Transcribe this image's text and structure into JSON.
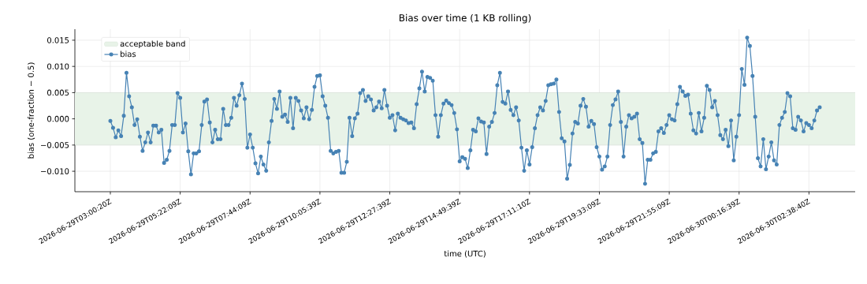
{
  "chart_data": {
    "type": "line",
    "title": "Bias over time (1 KB rolling)",
    "xlabel": "time (UTC)",
    "ylabel": "bias (one-fraction − 0.5)",
    "categories": [
      "2026-06-29T03:00:20Z",
      null,
      null,
      null,
      null,
      null,
      null,
      null,
      null,
      null,
      null,
      null,
      null,
      null,
      null,
      null,
      null,
      null,
      null,
      null,
      null,
      null,
      null,
      null,
      null,
      null,
      "2026-06-29T05:22:09Z",
      null,
      null,
      null,
      null,
      null,
      null,
      null,
      null,
      null,
      null,
      null,
      null,
      null,
      null,
      null,
      null,
      null,
      null,
      null,
      null,
      null,
      null,
      null,
      null,
      null,
      "2026-06-29T07:44:09Z",
      null,
      null,
      null,
      null,
      null,
      null,
      null,
      null,
      null,
      null,
      null,
      null,
      null,
      null,
      null,
      null,
      null,
      null,
      null,
      null,
      null,
      null,
      null,
      null,
      null,
      "2026-06-29T10:05:39Z",
      null,
      null,
      null,
      null,
      null,
      null,
      null,
      null,
      null,
      null,
      null,
      null,
      null,
      null,
      null,
      null,
      null,
      null,
      null,
      null,
      null,
      null,
      null,
      null,
      null,
      "2026-06-29T12:27:39Z",
      null,
      null,
      null,
      null,
      null,
      null,
      null,
      null,
      null,
      null,
      null,
      null,
      null,
      null,
      null,
      null,
      null,
      null,
      null,
      null,
      null,
      null,
      null,
      null,
      null,
      "2026-06-29T14:49:39Z",
      null,
      null,
      null,
      null,
      null,
      null,
      null,
      null,
      null,
      null,
      null,
      null,
      null,
      null,
      null,
      null,
      null,
      null,
      null,
      null,
      null,
      null,
      null,
      null,
      null,
      "2026-06-29T17:11:10Z",
      null,
      null,
      null,
      null,
      null,
      null,
      null,
      null,
      null,
      null,
      null,
      null,
      null,
      null,
      null,
      null,
      null,
      null,
      null,
      null,
      null,
      null,
      null,
      null,
      null,
      "2026-06-29T19:33:09Z",
      null,
      null,
      null,
      null,
      null,
      null,
      null,
      null,
      null,
      null,
      null,
      null,
      null,
      null,
      null,
      null,
      null,
      null,
      null,
      null,
      null,
      null,
      null,
      null,
      null,
      "2026-06-29T21:55:09Z",
      null,
      null,
      null,
      null,
      null,
      null,
      null,
      null,
      null,
      null,
      null,
      null,
      null,
      null,
      null,
      null,
      null,
      null,
      null,
      null,
      null,
      null,
      null,
      null,
      null,
      "2026-06-30T00:16:39Z",
      null,
      null,
      null,
      null,
      null,
      null,
      null,
      null,
      null,
      null,
      null,
      null,
      null,
      null,
      null,
      null,
      null,
      null,
      null,
      null,
      null,
      null,
      null,
      null,
      null,
      "2026-06-30T02:38:40Z",
      null,
      null,
      null,
      null
    ],
    "series": [
      {
        "name": "bias",
        "color": "#4682b4",
        "values": [
          -0.0004,
          -0.0017,
          -0.0035,
          -0.0022,
          -0.0033,
          0.0006,
          0.0088,
          0.0043,
          0.0022,
          -0.0012,
          -0.0001,
          -0.0034,
          -0.0061,
          -0.0045,
          -0.0026,
          -0.0045,
          -0.0013,
          -0.0013,
          -0.0026,
          -0.0021,
          -0.0084,
          -0.0078,
          -0.0061,
          -0.0012,
          -0.0012,
          0.0049,
          0.004,
          -0.0026,
          -0.0009,
          -0.0062,
          -0.0106,
          -0.0066,
          -0.0066,
          -0.0062,
          -0.0012,
          0.0033,
          0.0037,
          -0.0007,
          -0.0045,
          -0.0021,
          -0.0039,
          -0.0039,
          0.0019,
          -0.0012,
          -0.0012,
          0.0002,
          0.004,
          0.0025,
          0.0045,
          0.0067,
          0.0038,
          -0.0055,
          -0.003,
          -0.0055,
          -0.0085,
          -0.0104,
          -0.0072,
          -0.0087,
          -0.0099,
          -0.0045,
          -0.0004,
          0.0038,
          0.0019,
          0.0052,
          0.0004,
          0.0008,
          -0.0006,
          0.004,
          -0.0018,
          0.004,
          0.0034,
          0.0016,
          0.0001,
          0.0022,
          -0.0001,
          0.0017,
          0.0061,
          0.0082,
          0.0083,
          0.0043,
          0.0025,
          0.0002,
          -0.0061,
          -0.0066,
          -0.0063,
          -0.0061,
          -0.0103,
          -0.0103,
          -0.0082,
          0.0002,
          -0.0033,
          0.0001,
          0.001,
          0.0049,
          0.0055,
          0.0034,
          0.0043,
          0.0037,
          0.0016,
          0.0022,
          0.0033,
          0.002,
          0.0055,
          0.0025,
          0.0002,
          0.0007,
          -0.0022,
          0.001,
          0.0002,
          -0.0001,
          -0.0003,
          -0.0008,
          -0.0007,
          -0.0018,
          0.0028,
          0.0058,
          0.009,
          0.0052,
          0.008,
          0.0078,
          0.0073,
          0.0007,
          -0.0034,
          0.0007,
          0.0029,
          0.0035,
          0.003,
          0.0026,
          0.0011,
          -0.002,
          -0.0081,
          -0.0073,
          -0.0076,
          -0.0094,
          -0.006,
          -0.0021,
          -0.0024,
          0.0001,
          -0.0005,
          -0.0007,
          -0.0067,
          -0.0015,
          -0.0006,
          0.0011,
          0.0064,
          0.0088,
          0.0032,
          0.0029,
          0.0052,
          0.0017,
          0.0007,
          0.0022,
          -0.0003,
          -0.0055,
          -0.0099,
          -0.006,
          -0.0087,
          -0.0054,
          -0.0018,
          0.0007,
          0.0022,
          0.0016,
          0.0034,
          0.0064,
          0.0066,
          0.0067,
          0.0075,
          0.0013,
          -0.0037,
          -0.0043,
          -0.0114,
          -0.0088,
          -0.0028,
          -0.0006,
          -0.0009,
          0.0025,
          0.0038,
          0.0023,
          -0.0015,
          -0.0004,
          -0.001,
          -0.0054,
          -0.0072,
          -0.0097,
          -0.0091,
          -0.0072,
          -0.0012,
          0.0026,
          0.0037,
          0.0052,
          -0.0006,
          -0.0072,
          -0.0015,
          0.0007,
          0.0001,
          0.0004,
          0.001,
          -0.0039,
          -0.0046,
          -0.0124,
          -0.0078,
          -0.0078,
          -0.0066,
          -0.0063,
          -0.0024,
          -0.0018,
          -0.0027,
          -0.0012,
          0.0007,
          -0.0001,
          -0.0003,
          0.0028,
          0.0061,
          0.0052,
          0.0044,
          0.0046,
          0.001,
          -0.0022,
          -0.0028,
          0.0011,
          -0.0024,
          0.0002,
          0.0063,
          0.0055,
          0.0022,
          0.0034,
          0.0007,
          -0.0031,
          -0.0039,
          -0.0021,
          -0.0052,
          -0.0003,
          -0.0079,
          -0.0034,
          0.0007,
          0.0095,
          0.0065,
          0.0155,
          0.0139,
          0.0082,
          0.0004,
          -0.0075,
          -0.0091,
          -0.0039,
          -0.0096,
          -0.0072,
          -0.0045,
          -0.0079,
          -0.0087,
          -0.0012,
          0.0002,
          0.0013,
          0.0049,
          0.0043,
          -0.0018,
          -0.0021,
          0.0004,
          -0.0003,
          -0.0024,
          -0.0008,
          -0.0012,
          -0.0018,
          -0.0003,
          0.0016,
          0.0022
        ]
      }
    ],
    "bands": [
      {
        "axis": "y",
        "from": -0.005,
        "to": 0.005,
        "label": "acceptable band",
        "color": "#e8f3e8"
      }
    ],
    "ylim": [
      -0.0139,
      0.0171
    ],
    "yticks": [
      {
        "value": -0.01,
        "label": "−0.010"
      },
      {
        "value": -0.005,
        "label": "−0.005"
      },
      {
        "value": 0,
        "label": "0.000"
      },
      {
        "value": 0.005,
        "label": "0.005"
      },
      {
        "value": 0.01,
        "label": "0.010"
      },
      {
        "value": 0.015,
        "label": "0.015"
      }
    ],
    "grid": true,
    "legend": "top left",
    "marker": "circle",
    "line_style": "solid"
  }
}
